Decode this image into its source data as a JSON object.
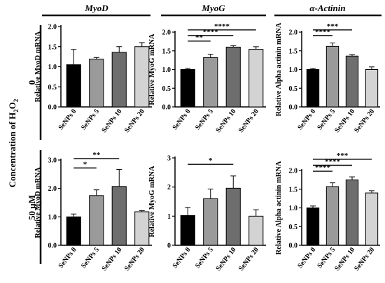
{
  "figure": {
    "side_label_main": "Concentration of H",
    "side_label_sub": "2",
    "side_label_o": "O",
    "side_label_sub2": "2",
    "row_labels": [
      "0",
      "50 µM"
    ],
    "column_titles": [
      "MyoD",
      "MyoG",
      "α-Actinin"
    ]
  },
  "colors": {
    "bar_fills": [
      "#000000",
      "#9a9a9a",
      "#6e6e6e",
      "#d3d3d3"
    ],
    "bar_stroke": "#000000"
  },
  "chart_data": [
    {
      "type": "bar",
      "panel": "top-left",
      "title": "MyoD",
      "row": "0",
      "ylabel": "Relative MyoD mRNA",
      "categories": [
        "SeNPs 0",
        "SeNPs 5",
        "SeNPs 10",
        "SeNPs 20"
      ],
      "values": [
        1.05,
        1.19,
        1.36,
        1.5
      ],
      "errors": [
        0.38,
        0.04,
        0.14,
        0.1
      ],
      "ylim": [
        0,
        2.0
      ],
      "yticks": [
        "0.0",
        "0.5",
        "1.0",
        "1.5",
        "2.0"
      ],
      "significance": []
    },
    {
      "type": "bar",
      "panel": "top-middle",
      "title": "MyoG",
      "row": "0",
      "ylabel": "Relative MyoG mRNA",
      "categories": [
        "SeNPs 0",
        "SeNPs 5",
        "SeNPs 10",
        "SeNPs 20"
      ],
      "values": [
        1.0,
        1.32,
        1.6,
        1.54
      ],
      "errors": [
        0.03,
        0.09,
        0.04,
        0.07
      ],
      "ylim": [
        0,
        2.0
      ],
      "yticks": [
        "0.0",
        "0.5",
        "1.0",
        "1.5",
        "2.0"
      ],
      "significance": [
        {
          "from": 0,
          "to": 1,
          "label": "**",
          "y": 1.76
        },
        {
          "from": 0,
          "to": 2,
          "label": "****",
          "y": 1.91
        },
        {
          "from": 0,
          "to": 3,
          "label": "****",
          "y": 2.06
        }
      ]
    },
    {
      "type": "bar",
      "panel": "top-right",
      "title": "α-Actinin",
      "row": "0",
      "ylabel": "Relative Alpha actinin mRNA",
      "categories": [
        "SeNPs 0",
        "SeNPs 5",
        "SeNPs 10",
        "SeNPs 20"
      ],
      "values": [
        1.0,
        1.62,
        1.36,
        1.0
      ],
      "errors": [
        0.03,
        0.09,
        0.04,
        0.07
      ],
      "ylim": [
        0,
        2.0
      ],
      "yticks": [
        "0.0",
        "0.5",
        "1.0",
        "1.5",
        "2.0"
      ],
      "significance": [
        {
          "from": 0,
          "to": 1,
          "label": "****",
          "y": 1.91
        },
        {
          "from": 0,
          "to": 2,
          "label": "***",
          "y": 2.06
        }
      ]
    },
    {
      "type": "bar",
      "panel": "bottom-left",
      "title": "MyoD",
      "row": "50 µM",
      "ylabel": "Relative MyoD mRNA",
      "categories": [
        "SeNPs 0",
        "SeNPs 5",
        "SeNPs 10",
        "SeNPs 20"
      ],
      "values": [
        1.0,
        1.75,
        2.07,
        1.18
      ],
      "errors": [
        0.1,
        0.2,
        0.6,
        0.04
      ],
      "ylim": [
        0,
        3.0
      ],
      "yticks": [
        "0.0",
        "1.0",
        "2.0",
        "3.0"
      ],
      "significance": [
        {
          "from": 0,
          "to": 1,
          "label": "*",
          "y": 2.72
        },
        {
          "from": 0,
          "to": 2,
          "label": "**",
          "y": 3.05
        }
      ]
    },
    {
      "type": "bar",
      "panel": "bottom-middle",
      "title": "MyoG",
      "row": "50 µM",
      "ylabel": "Relative MyoG mRNA",
      "categories": [
        "SeNPs 0",
        "SeNPs 5",
        "SeNPs 10",
        "SeNPs 20"
      ],
      "values": [
        1.02,
        1.6,
        1.96,
        1.0
      ],
      "errors": [
        0.28,
        0.33,
        0.42,
        0.22
      ],
      "ylim": [
        0,
        3.0
      ],
      "yticks": [
        "0",
        "1",
        "2",
        "3"
      ],
      "significance": [
        {
          "from": 0,
          "to": 2,
          "label": "*",
          "y": 2.78
        }
      ]
    },
    {
      "type": "bar",
      "panel": "bottom-right",
      "title": "α-Actinin",
      "row": "50 µM",
      "ylabel": "Relative Alpha actinin mRNA",
      "categories": [
        "SeNPs 0",
        "SeNPs 5",
        "SeNPs 10",
        "SeNPs 20"
      ],
      "values": [
        1.0,
        1.57,
        1.75,
        1.4
      ],
      "errors": [
        0.05,
        0.1,
        0.08,
        0.06
      ],
      "ylim": [
        0,
        2.0
      ],
      "yticks": [
        "0.0",
        "0.5",
        "1.0",
        "1.5",
        "2.0"
      ],
      "significance": [
        {
          "from": 0,
          "to": 1,
          "label": "****",
          "y": 1.98
        },
        {
          "from": 0,
          "to": 2,
          "label": "****",
          "y": 2.14
        },
        {
          "from": 0,
          "to": 3,
          "label": "***",
          "y": 2.3
        }
      ]
    }
  ]
}
